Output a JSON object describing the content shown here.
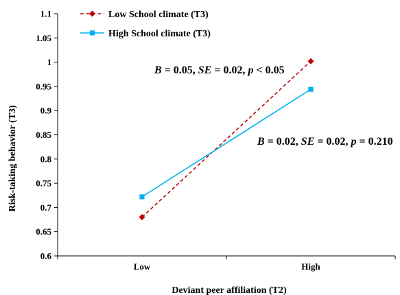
{
  "chart_data": {
    "type": "line",
    "title": "",
    "xlabel": "Deviant peer affiliation (T2)",
    "ylabel": "Risk-taking behavior (T3)",
    "categories": [
      "Low",
      "High"
    ],
    "ylim": [
      0.6,
      1.1
    ],
    "ytick_labels": [
      "0.6",
      "0.65",
      "0.7",
      "0.75",
      "0.8",
      "0.85",
      "0.9",
      "0.95",
      "1",
      "1.05",
      "1.1"
    ],
    "grid": false,
    "legend_position": "top-left",
    "series": [
      {
        "name": "Low School climate (T3)",
        "values": [
          0.68,
          1.002
        ],
        "color": "#c00000",
        "line_style": "dashed",
        "marker": "diamond"
      },
      {
        "name": "High School climate (T3)",
        "values": [
          0.722,
          0.944
        ],
        "color": "#00b0f0",
        "line_style": "solid",
        "marker": "square"
      }
    ],
    "annotations": [
      {
        "series": "Low School climate (T3)",
        "parts": [
          {
            "t": "B",
            "italic": true
          },
          {
            "t": " = 0.05, ",
            "italic": false
          },
          {
            "t": "SE",
            "italic": true
          },
          {
            "t": " = 0.02, ",
            "italic": false
          },
          {
            "t": "p",
            "italic": true
          },
          {
            "t": " < 0.05",
            "italic": false
          }
        ]
      },
      {
        "series": "High School climate (T3)",
        "parts": [
          {
            "t": "B",
            "italic": true
          },
          {
            "t": " = 0.02, ",
            "italic": false
          },
          {
            "t": "SE",
            "italic": true
          },
          {
            "t": " = 0.02, ",
            "italic": false
          },
          {
            "t": "p",
            "italic": true
          },
          {
            "t": " = 0.210",
            "italic": false
          }
        ]
      }
    ]
  }
}
